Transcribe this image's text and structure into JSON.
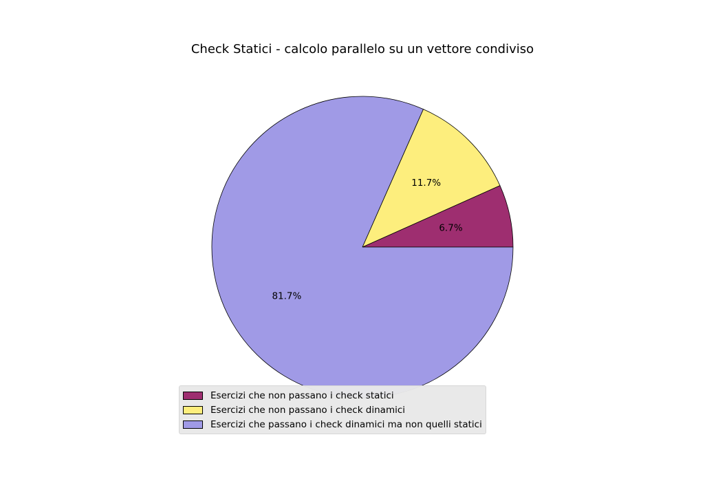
{
  "chart_data": {
    "type": "pie",
    "title": "Check Statici - calcolo parallelo su un vettore condiviso",
    "labels": [
      "Esercizi che non passano i check statici",
      "Esercizi che non passano i check dinamici",
      "Esercizi che passano i check dinamici ma non quelli statici"
    ],
    "values": [
      6.7,
      11.7,
      81.7
    ],
    "value_labels": [
      "6.7%",
      "11.7%",
      "81.7%"
    ],
    "colors": [
      "#9e2e70",
      "#fdee7d",
      "#a09ae6"
    ],
    "legend_position": "lower-center",
    "start_angle_deg": 0,
    "direction": "counterclockwise"
  }
}
